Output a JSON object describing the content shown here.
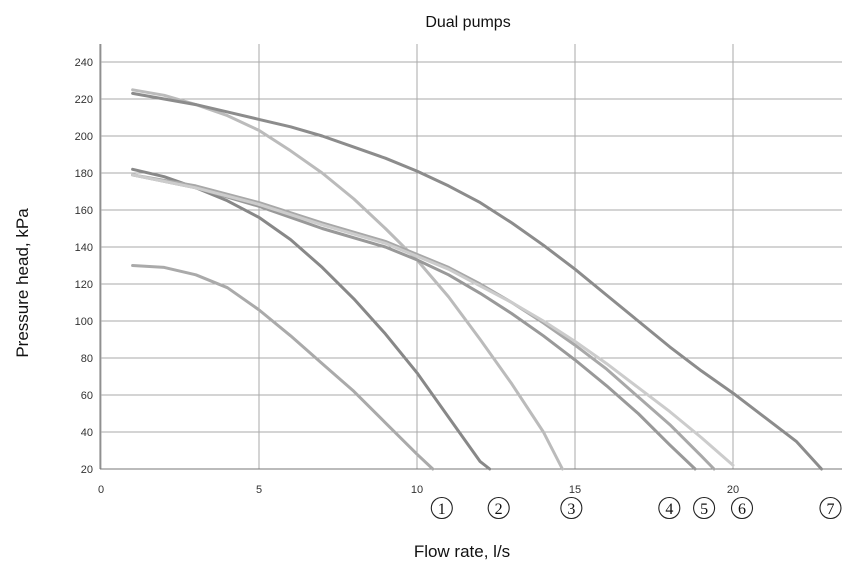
{
  "chart_data": {
    "type": "line",
    "title": "Dual pumps",
    "xlabel": "Flow rate, l/s",
    "ylabel": "Pressure head, kPa",
    "xlim": [
      0,
      23.5
    ],
    "ylim": [
      20,
      250
    ],
    "x_ticks": [
      0,
      5,
      10,
      15,
      20
    ],
    "y_ticks": [
      20,
      40,
      60,
      80,
      100,
      120,
      140,
      160,
      180,
      200,
      220,
      240
    ],
    "grid": true,
    "legend": "none",
    "curve_markers": [
      {
        "label": "1",
        "x": 10.5
      },
      {
        "label": "2",
        "x": 12.3
      },
      {
        "label": "3",
        "x": 14.6
      },
      {
        "label": "4",
        "x": 17.7
      },
      {
        "label": "5",
        "x": 18.8
      },
      {
        "label": "6",
        "x": 20.0
      },
      {
        "label": "7",
        "x": 22.8
      }
    ],
    "series": [
      {
        "marker": "1",
        "color": "#aaaaaa",
        "x": [
          1,
          2,
          3,
          4,
          5,
          6,
          7,
          8,
          9,
          10,
          10.5
        ],
        "y": [
          130,
          129,
          125,
          118,
          106,
          92,
          77,
          62,
          45,
          28,
          20
        ]
      },
      {
        "marker": "2",
        "color": "#888888",
        "x": [
          1,
          2,
          3,
          4,
          5,
          6,
          7,
          8,
          9,
          10,
          11,
          12,
          12.3
        ],
        "y": [
          182,
          178,
          172,
          165,
          156,
          144,
          129,
          112,
          93,
          72,
          48,
          24,
          20
        ]
      },
      {
        "marker": "3",
        "color": "#bbbbbb",
        "x": [
          1,
          2,
          3,
          4,
          5,
          6,
          7,
          8,
          9,
          10,
          11,
          12,
          13,
          14,
          14.6
        ],
        "y": [
          225,
          222,
          217,
          211,
          203,
          192,
          180,
          166,
          150,
          133,
          113,
          90,
          66,
          40,
          20
        ]
      },
      {
        "marker": "4",
        "color": "#999999",
        "x": [
          1,
          3,
          5,
          7,
          9,
          10,
          11,
          12,
          13,
          14,
          15,
          16,
          17,
          18,
          18.8
        ],
        "y": [
          179,
          172,
          162,
          150,
          140,
          133,
          125,
          115,
          104,
          92,
          79,
          65,
          50,
          33,
          20
        ]
      },
      {
        "marker": "5",
        "color": "#a8a8a8",
        "x": [
          1,
          3,
          5,
          7,
          9,
          10,
          11,
          12,
          13,
          14,
          15,
          16,
          17,
          18,
          19,
          19.4
        ],
        "y": [
          179,
          173,
          164,
          153,
          143,
          136,
          129,
          120,
          110,
          99,
          87,
          74,
          59,
          44,
          27,
          20
        ]
      },
      {
        "marker": "6",
        "color": "#cccccc",
        "x": [
          1,
          3,
          5,
          7,
          9,
          10,
          11,
          12,
          13,
          14,
          15,
          16,
          17,
          18,
          19,
          20
        ],
        "y": [
          179,
          172,
          163,
          152,
          142,
          135,
          128,
          119,
          110,
          100,
          89,
          77,
          64,
          51,
          37,
          22
        ]
      },
      {
        "marker": "7",
        "color": "#8c8c8c",
        "x": [
          1,
          2,
          3,
          4,
          5,
          6,
          7,
          8,
          9,
          10,
          11,
          12,
          13,
          14,
          15,
          16,
          17,
          18,
          19,
          20,
          21,
          22,
          22.8
        ],
        "y": [
          223,
          220,
          217,
          213,
          209,
          205,
          200,
          194,
          188,
          181,
          173,
          164,
          153,
          141,
          128,
          114,
          100,
          86,
          73,
          61,
          48,
          35,
          20
        ]
      }
    ]
  }
}
